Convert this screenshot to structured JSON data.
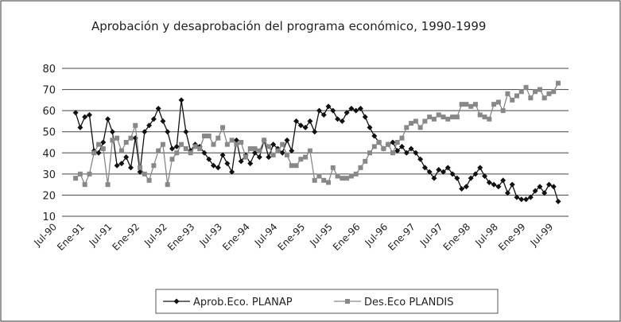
{
  "chart_data": {
    "type": "line",
    "title": "Aprobación y desaprobación del programa económico, 1990-1999",
    "categories": [
      "Jul-90",
      null,
      null,
      null,
      null,
      null,
      "Ene-91",
      null,
      null,
      null,
      null,
      null,
      "Jul-91",
      null,
      null,
      null,
      null,
      null,
      "Ene-92",
      null,
      null,
      null,
      null,
      null,
      "Jul-92",
      null,
      null,
      null,
      null,
      null,
      "Ene-93",
      null,
      null,
      null,
      null,
      null,
      "Jul-93",
      null,
      null,
      null,
      null,
      null,
      "Ene-94",
      null,
      null,
      null,
      null,
      null,
      "Jul-94",
      null,
      null,
      null,
      null,
      null,
      "Ene-95",
      null,
      null,
      null,
      null,
      null,
      "Jul-95",
      null,
      null,
      null,
      null,
      null,
      "Ene-96",
      null,
      null,
      null,
      null,
      null,
      "Jul-96",
      null,
      null,
      null,
      null,
      null,
      "Ene-97",
      null,
      null,
      null,
      null,
      null,
      "Jul-97",
      null,
      null,
      null,
      null,
      null,
      "Ene-98",
      null,
      null,
      null,
      null,
      null,
      "Jul-98",
      null,
      null,
      null,
      null,
      null,
      "Ene-99",
      null,
      null,
      null,
      null,
      null,
      "Jul-99",
      null
    ],
    "series": [
      {
        "name": "Aprob.Eco. PLANAP",
        "color": "#111111",
        "marker": "diamond",
        "values": [
          null,
          null,
          null,
          null,
          59,
          52,
          57,
          58,
          41,
          40,
          45,
          56,
          50,
          34,
          35,
          38,
          33,
          47,
          31,
          50,
          53,
          56,
          61,
          55,
          50,
          42,
          43,
          65,
          50,
          41,
          44,
          43,
          40,
          37,
          34,
          33,
          39,
          35,
          31,
          46,
          36,
          39,
          35,
          40,
          38,
          46,
          38,
          44,
          42,
          40,
          46,
          41,
          55,
          53,
          52,
          55,
          50,
          60,
          58,
          62,
          60,
          56,
          55,
          59,
          61,
          60,
          61,
          57,
          52,
          48,
          45,
          42,
          44,
          45,
          41,
          43,
          40,
          42,
          40,
          37,
          33,
          31,
          28,
          32,
          31,
          33,
          30,
          28,
          23,
          24,
          28,
          30,
          33,
          29,
          26,
          25,
          24,
          27,
          21,
          25,
          19,
          18,
          18,
          19,
          22,
          24,
          21,
          25,
          24,
          17
        ]
      },
      {
        "name": "Des.Eco PLANDIS",
        "color": "#888888",
        "marker": "square",
        "values": [
          null,
          null,
          null,
          null,
          28,
          30,
          25,
          30,
          40,
          44,
          42,
          25,
          46,
          47,
          41,
          45,
          47,
          53,
          33,
          30,
          27,
          34,
          41,
          44,
          25,
          37,
          40,
          44,
          42,
          40,
          43,
          42,
          48,
          48,
          44,
          47,
          52,
          44,
          46,
          44,
          45,
          38,
          42,
          42,
          41,
          46,
          43,
          39,
          41,
          44,
          39,
          34,
          34,
          37,
          38,
          41,
          27,
          29,
          27,
          26,
          33,
          29,
          28,
          28,
          29,
          30,
          33,
          36,
          40,
          43,
          45,
          42,
          44,
          40,
          45,
          47,
          52,
          54,
          55,
          52,
          55,
          57,
          56,
          58,
          57,
          56,
          57,
          57,
          63,
          63,
          62,
          63,
          58,
          57,
          56,
          63,
          64,
          60,
          68,
          65,
          67,
          69,
          71,
          66,
          69,
          70,
          66,
          68,
          69,
          73
        ]
      }
    ],
    "ylim": [
      10,
      80
    ],
    "yticks": [
      10,
      20,
      30,
      40,
      50,
      60,
      70,
      80
    ],
    "grid": true,
    "legend": "bottom"
  }
}
